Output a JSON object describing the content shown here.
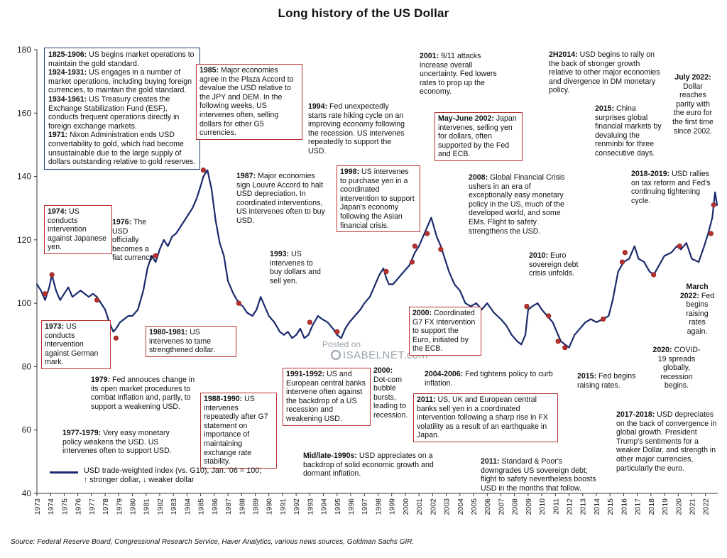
{
  "colors": {
    "series": "#1a2a6c",
    "marker": "#b8312f",
    "box_red": "#b8312f",
    "box_blue": "#1f3e7a"
  },
  "chart_data": {
    "type": "line",
    "title": "Long history of the US Dollar",
    "xlabel": "",
    "ylabel": "",
    "ylim": [
      40,
      180
    ],
    "xlim": [
      1973,
      2022.9
    ],
    "y_ticks": [
      "40",
      "60",
      "80",
      "100",
      "120",
      "140",
      "160",
      "180"
    ],
    "x_ticks": [
      "1973",
      "1974",
      "1975",
      "1976",
      "1977",
      "1978",
      "1979",
      "1980",
      "1981",
      "1982",
      "1983",
      "1984",
      "1985",
      "1986",
      "1987",
      "1988",
      "1989",
      "1990",
      "1991",
      "1992",
      "1993",
      "1994",
      "1995",
      "1996",
      "1997",
      "1998",
      "1999",
      "2000",
      "2001",
      "2002",
      "2003",
      "2004",
      "2005",
      "2006",
      "2007",
      "2008",
      "2009",
      "2010",
      "2011",
      "2012",
      "2013",
      "2014",
      "2015",
      "2016",
      "2017",
      "2018",
      "2019",
      "2020",
      "2021",
      "2022"
    ],
    "grid": false,
    "legend": "bottom-left",
    "series": [
      {
        "name": "USD trade-weighted index (vs. G10), Jan. '06 = 100; ↑ stronger dollar, ↓ weaker dollar",
        "x": [
          1973.0,
          1973.3,
          1973.6,
          1973.9,
          1974.1,
          1974.4,
          1974.7,
          1975.0,
          1975.3,
          1975.6,
          1975.9,
          1976.2,
          1976.5,
          1976.8,
          1977.1,
          1977.4,
          1977.7,
          1978.0,
          1978.3,
          1978.6,
          1978.8,
          1979.1,
          1979.4,
          1979.7,
          1980.0,
          1980.4,
          1980.8,
          1981.1,
          1981.4,
          1981.7,
          1982.0,
          1982.3,
          1982.6,
          1982.9,
          1983.2,
          1983.5,
          1983.8,
          1984.1,
          1984.4,
          1984.7,
          1985.0,
          1985.2,
          1985.5,
          1985.8,
          1986.1,
          1986.4,
          1986.7,
          1987.0,
          1987.4,
          1987.8,
          1988.1,
          1988.4,
          1988.8,
          1989.1,
          1989.4,
          1989.7,
          1990.0,
          1990.4,
          1990.8,
          1991.1,
          1991.4,
          1991.7,
          1992.0,
          1992.3,
          1992.6,
          1992.9,
          1993.2,
          1993.6,
          1993.9,
          1994.3,
          1994.7,
          1995.0,
          1995.3,
          1995.6,
          1995.9,
          1996.3,
          1996.7,
          1997.0,
          1997.4,
          1997.8,
          1998.1,
          1998.4,
          1998.6,
          1998.8,
          1999.1,
          1999.5,
          1999.9,
          2000.3,
          2000.7,
          2001.0,
          2001.4,
          2001.7,
          2001.9,
          2002.1,
          2002.3,
          2002.6,
          2002.9,
          2003.2,
          2003.6,
          2004.0,
          2004.4,
          2004.8,
          2005.2,
          2005.6,
          2006.0,
          2006.5,
          2007.0,
          2007.4,
          2007.8,
          2008.2,
          2008.5,
          2008.8,
          2009.0,
          2009.3,
          2009.7,
          2010.0,
          2010.4,
          2010.8,
          2011.1,
          2011.4,
          2011.7,
          2012.0,
          2012.4,
          2012.8,
          2013.2,
          2013.6,
          2014.0,
          2014.5,
          2014.9,
          2015.2,
          2015.6,
          2016.0,
          2016.4,
          2016.8,
          2017.1,
          2017.5,
          2017.9,
          2018.2,
          2018.6,
          2019.0,
          2019.5,
          2019.9,
          2020.2,
          2020.6,
          2021.0,
          2021.5,
          2021.9,
          2022.2,
          2022.5,
          2022.7,
          2022.85
        ],
        "y": [
          106,
          104,
          101,
          105,
          109,
          104,
          101,
          103,
          105,
          102,
          103,
          104,
          103,
          102,
          103,
          102,
          100,
          98,
          94,
          91,
          92,
          94,
          95,
          96,
          96,
          98,
          104,
          111,
          115,
          113,
          117,
          120,
          118,
          121,
          122,
          124,
          126,
          128,
          130,
          133,
          137,
          140,
          142,
          136,
          126,
          119,
          115,
          107,
          103,
          100,
          99,
          97,
          96,
          98,
          102,
          99,
          96,
          94,
          91,
          90,
          91,
          89,
          90,
          92,
          89,
          90,
          93,
          96,
          95,
          94,
          92,
          90,
          89,
          92,
          94,
          96,
          98,
          100,
          102,
          106,
          109,
          111,
          108,
          106,
          106,
          108,
          110,
          112,
          116,
          118,
          122,
          125,
          127,
          124,
          121,
          118,
          114,
          110,
          106,
          104,
          100,
          99,
          100,
          98,
          100,
          97,
          95,
          93,
          90,
          88,
          87,
          90,
          98,
          99,
          100,
          98,
          96,
          94,
          91,
          88,
          87,
          86,
          90,
          92,
          94,
          95,
          94,
          95,
          96,
          101,
          110,
          113,
          114,
          118,
          114,
          113,
          110,
          109,
          112,
          115,
          116,
          118,
          117,
          119,
          114,
          113,
          118,
          122,
          127,
          135,
          131
        ]
      }
    ],
    "markers": [
      {
        "x": 1973.6,
        "y": 103
      },
      {
        "x": 1974.1,
        "y": 109
      },
      {
        "x": 1977.4,
        "y": 101
      },
      {
        "x": 1978.8,
        "y": 89
      },
      {
        "x": 1981.7,
        "y": 115
      },
      {
        "x": 1985.2,
        "y": 142
      },
      {
        "x": 1987.8,
        "y": 100
      },
      {
        "x": 1993.0,
        "y": 94
      },
      {
        "x": 1995.0,
        "y": 91
      },
      {
        "x": 1998.6,
        "y": 110
      },
      {
        "x": 2000.5,
        "y": 113
      },
      {
        "x": 2000.7,
        "y": 118
      },
      {
        "x": 2001.6,
        "y": 122
      },
      {
        "x": 2002.6,
        "y": 117
      },
      {
        "x": 2008.9,
        "y": 99
      },
      {
        "x": 2010.5,
        "y": 96
      },
      {
        "x": 2011.2,
        "y": 88
      },
      {
        "x": 2011.7,
        "y": 86
      },
      {
        "x": 2014.5,
        "y": 95
      },
      {
        "x": 2015.9,
        "y": 113
      },
      {
        "x": 2016.1,
        "y": 116
      },
      {
        "x": 2018.2,
        "y": 109
      },
      {
        "x": 2020.1,
        "y": 118
      },
      {
        "x": 2022.4,
        "y": 122
      },
      {
        "x": 2022.6,
        "y": 131
      }
    ]
  },
  "annotations": {
    "a1": {
      "h1": "1825-1906:",
      "t1": " US begins market operations to maintain the gold standard.",
      "h2": "1924-1931:",
      "t2": " US engages in a number of market operations, including buying foreign currencies, to maintain the gold standard.",
      "h3": "1934-1961:",
      "t3": " US Treasury creates the Exchange Stabilization Fund (ESF), conducts frequent operations directly in foreign exchange markets.",
      "h4": "1971:",
      "t4": " Nixon Administration ends USD convertability to gold, which had become unsustainable due to the large supply of dollars outstanding relative to gold reserves."
    },
    "a1985": {
      "h": "1985:",
      "t": " Major economies agree in the Plaza Accord to devalue the USD relative to the JPY and DEM. In the following weeks, US intervenes often, selling dollars for other G5 currencies."
    },
    "a1974": {
      "h": "1974:",
      "t": " US conducts intervention against Japanese yen."
    },
    "a1976": {
      "h": "1976:",
      "t": " The USD officially becomes a fiat currency."
    },
    "a1987": {
      "h": "1987:",
      "t": " Major economies sign Louvre Accord to halt USD depreciation. In coordinated interventions, US intervenes often to buy USD."
    },
    "a1994": {
      "h": "1994:",
      "t": " Fed unexpectedly starts rate hiking cycle on an improving economy following the recession. US intervenes repeatedly to support the USD."
    },
    "a1993": {
      "h": "1993:",
      "t": " US intervenes to buy dollars and sell yen."
    },
    "a1998": {
      "h": "1998:",
      "t": " US intervenes to purchase yen in a coordinated intervention to support Japan's economy following the Asian financial crisis."
    },
    "a2001": {
      "h": "2001:",
      "t": " 9/11 attacks increase overall uncertainty. Fed lowers rates to prop up the economy."
    },
    "a2002": {
      "h": "May-June 2002:",
      "t": " Japan intervenes, selling yen for dollars, often supported by the Fed and ECB."
    },
    "a2008": {
      "h": "2008:",
      "t": " Global Financial Crisis ushers in an era of exceptionally easy monetary policy in the US, much of the developed world, and some EMs. Flight to safety strengthens the USD."
    },
    "a2014": {
      "h": "2H2014:",
      "t": " USD begins to rally on the back of stronger growth relative to other major economies and divergence in DM monetary policy."
    },
    "a2015c": {
      "h": "2015:",
      "t": " China surprises global financial markets by devaluing the renminbi for three consecutive days."
    },
    "a2022j": {
      "h": "July 2022:",
      "t": " Dollar reaches parity with the euro for the first time since 2002."
    },
    "a2018": {
      "h": "2018-2019:",
      "t": " USD rallies on tax reform and Fed's continuing tightening cycle."
    },
    "a2010": {
      "h": "2010:",
      "t": " Euro sovereign debt crisis unfolds."
    },
    "a2022m": {
      "h": "March 2022:",
      "t": " Fed begins raising rates again."
    },
    "a1973": {
      "h": "1973:",
      "t": " US conducts intervention against German mark."
    },
    "a1980": {
      "h": "1980-1981:",
      "t": " US intervenes to tame strengthened dollar."
    },
    "a1979": {
      "h": "1979:",
      "t": " Fed annouces change in its open market procedures to combat inflation and, partly, to support a weakening USD."
    },
    "a1988": {
      "h": "1988-1990:",
      "t": " US intervenes repeatedly after G7 statement on importance of maintaining exchange rate stability."
    },
    "a1991": {
      "h": "1991-1992:",
      "t": " US and European central banks intervene often against the backdrop of a US recession and weakening USD."
    },
    "a2000d": {
      "h": "2000:",
      "t": " Dot-com bubble bursts, leading to recession."
    },
    "a2000g": {
      "h": "2000:",
      "t": " Coordinated G7 FX intervention to support the Euro, initiated by the ECB."
    },
    "a2004": {
      "h": "2004-2006:",
      "t": " Fed tightens policy to curb inflation."
    },
    "a2011a": {
      "h": "2011:",
      "t": " US, UK and European central banks sell yen in a coordinated intervention following a sharp rise in FX volatility as a result of an earthquake in Japan."
    },
    "a2011b": {
      "h": "2011:",
      "t": " Standard & Poor's downgrades US sovereign debt; flight to safety nevertheless boosts USD in the months that follow."
    },
    "a2015f": {
      "h": "2015:",
      "t": " Fed begins raising rates."
    },
    "a2020": {
      "h": "2020:",
      "t": " COVID-19 spreads globally, recession begins."
    },
    "a2017": {
      "h": "2017-2018:",
      "t": " USD depreciates on the back of convergence in global growth. President Trump's sentiments for a weaker Dollar, and strength in other major currencies, particularly the euro."
    },
    "a1977": {
      "h": "1977-1979:",
      "t": " Very easy monetary policy weakens the USD. US intervenes often to support USD."
    },
    "a1990s": {
      "h": "Mid/late-1990s:",
      "t": " USD appreciates on a backdrop of solid economic growth and dormant inflation."
    }
  },
  "legend": {
    "line1": "USD trade-weighted index (vs. G10), Jan. '06 = 100;",
    "line2": "↑ stronger dollar, ↓ weaker dollar"
  },
  "watermark": {
    "line1": "Posted on",
    "line2": "ISABELNET.com"
  },
  "source": "Source: Federal Reserve Board, Congressional Research Service, Haver Analytics, various news sources, Goldman Sachs GIR."
}
